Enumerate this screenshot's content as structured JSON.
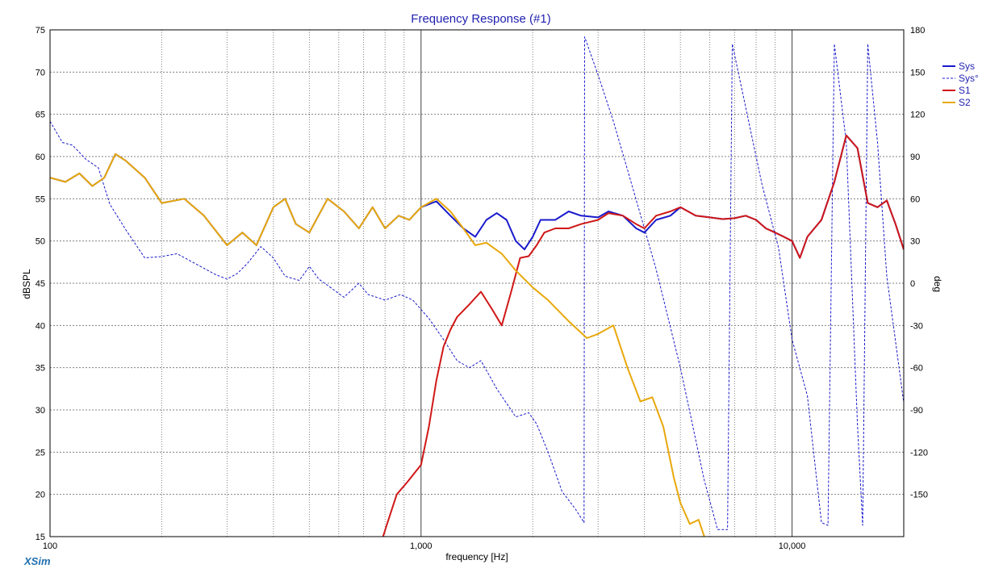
{
  "chart_data": {
    "type": "line",
    "title": "Frequency Response (#1)",
    "xlabel": "frequency [Hz]",
    "ylabel": "dBSPL",
    "y2label": "deg",
    "xscale": "log",
    "xlim": [
      100,
      20000
    ],
    "ylim": [
      15,
      75
    ],
    "y2lim": [
      -180,
      180
    ],
    "grid": true,
    "legend_position": "top-right",
    "x_tick_labels": [
      {
        "value": 100,
        "label": "100"
      },
      {
        "value": 1000,
        "label": "1,000"
      },
      {
        "value": 10000,
        "label": "10,000"
      }
    ],
    "y_ticks": [
      15,
      20,
      25,
      30,
      35,
      40,
      45,
      50,
      55,
      60,
      65,
      70,
      75
    ],
    "y2_ticks": [
      -150,
      -120,
      -90,
      -60,
      -30,
      0,
      30,
      60,
      90,
      120,
      150,
      180
    ],
    "series": [
      {
        "name": "Sys",
        "axis": "left",
        "color": "#1a1acc",
        "dash": "solid",
        "x": [
          100,
          110,
          120,
          130,
          140,
          150,
          160,
          180,
          200,
          230,
          260,
          300,
          330,
          360,
          400,
          430,
          460,
          500,
          560,
          620,
          680,
          740,
          800,
          870,
          930,
          1000,
          1100,
          1200,
          1300,
          1400,
          1500,
          1600,
          1700,
          1800,
          1900,
          2000,
          2100,
          2300,
          2500,
          2700,
          3000,
          3200,
          3500,
          3800,
          4000,
          4300,
          4700,
          5000,
          5500,
          6000,
          6500,
          7000,
          7500,
          8000,
          8500,
          9000,
          9500,
          10000,
          10500,
          11000,
          12000,
          13000,
          14000,
          15000,
          16000,
          17000,
          18000,
          19000,
          20000
        ],
        "values": [
          57.5,
          57.0,
          58.0,
          56.5,
          57.5,
          60.3,
          59.5,
          57.5,
          54.5,
          55.0,
          53.0,
          49.5,
          51.0,
          49.5,
          54.0,
          55.0,
          52.0,
          51.0,
          55.0,
          53.5,
          51.5,
          54.0,
          51.5,
          53.0,
          52.5,
          54.0,
          54.7,
          53.0,
          51.5,
          50.5,
          52.5,
          53.3,
          52.5,
          50.0,
          49.0,
          50.5,
          52.5,
          52.5,
          53.5,
          53.0,
          52.8,
          53.5,
          53.0,
          51.5,
          51.0,
          52.5,
          53.0,
          54.0,
          53.0,
          52.8,
          52.6,
          52.7,
          53.0,
          52.5,
          51.5,
          51.0,
          50.5,
          50.0,
          48.0,
          50.5,
          52.5,
          57.0,
          62.5,
          61.0,
          54.5,
          54.0,
          54.8,
          52.0,
          49.0
        ]
      },
      {
        "name": "Sys°",
        "axis": "right",
        "color": "#1a1acc",
        "dash": "dashed",
        "x": [
          100,
          108,
          115,
          125,
          135,
          145,
          160,
          180,
          200,
          220,
          250,
          280,
          300,
          320,
          340,
          370,
          400,
          430,
          470,
          500,
          530,
          570,
          620,
          680,
          720,
          800,
          880,
          950,
          1050,
          1150,
          1250,
          1350,
          1450,
          1600,
          1800,
          1950,
          2050,
          2200,
          2400,
          2600,
          2750,
          2760,
          3000,
          3300,
          3700,
          4300,
          5000,
          5800,
          6300,
          6700,
          6900,
          7500,
          8300,
          9200,
          10000,
          11000,
          12000,
          12500,
          13000,
          14000,
          15000,
          15500,
          16000,
          17000,
          18000,
          20000
        ],
        "values": [
          115,
          100,
          98,
          88,
          82,
          56,
          38,
          18,
          19,
          21,
          13,
          6,
          3,
          7,
          14,
          26,
          18,
          5,
          2,
          12,
          3,
          -3,
          -10,
          0,
          -8,
          -12,
          -8,
          -12,
          -25,
          -40,
          -55,
          -60,
          -55,
          -75,
          -95,
          -92,
          -100,
          -120,
          -148,
          -160,
          -170,
          175,
          148,
          115,
          70,
          10,
          -60,
          -140,
          -175,
          -175,
          170,
          125,
          70,
          25,
          -40,
          -80,
          -170,
          -172,
          170,
          100,
          -100,
          -172,
          170,
          100,
          5,
          -85
        ]
      },
      {
        "name": "S1",
        "axis": "left",
        "color": "#d01818",
        "dash": "solid",
        "x": [
          790,
          810,
          860,
          920,
          1000,
          1050,
          1100,
          1150,
          1200,
          1250,
          1350,
          1450,
          1550,
          1650,
          1750,
          1850,
          1950,
          2050,
          2150,
          2300,
          2500,
          2700,
          3000,
          3200,
          3500,
          3800,
          4000,
          4300,
          4700,
          5000,
          5500,
          6000,
          6500,
          7000,
          7500,
          8000,
          8500,
          9000,
          9500,
          10000,
          10500,
          11000,
          12000,
          13000,
          14000,
          15000,
          16000,
          17000,
          18000,
          19000,
          20000
        ],
        "values": [
          15.0,
          16.5,
          20.0,
          21.5,
          23.5,
          28.0,
          33.5,
          37.5,
          39.5,
          41.0,
          42.5,
          44.0,
          42.0,
          40.0,
          44.0,
          48.0,
          48.2,
          49.5,
          51.0,
          51.5,
          51.5,
          52.0,
          52.5,
          53.3,
          53.0,
          52.0,
          51.5,
          53.0,
          53.5,
          54.0,
          53.0,
          52.8,
          52.6,
          52.7,
          53.0,
          52.5,
          51.5,
          51.0,
          50.5,
          50.0,
          48.0,
          50.5,
          52.5,
          57.0,
          62.5,
          61.0,
          54.5,
          54.0,
          54.8,
          52.0,
          49.0
        ]
      },
      {
        "name": "S2",
        "axis": "left",
        "color": "#e8a80c",
        "dash": "solid",
        "x": [
          100,
          110,
          120,
          130,
          140,
          150,
          160,
          180,
          200,
          230,
          260,
          300,
          330,
          360,
          400,
          430,
          460,
          500,
          560,
          620,
          680,
          740,
          800,
          870,
          930,
          1000,
          1100,
          1200,
          1300,
          1400,
          1500,
          1650,
          1800,
          2000,
          2200,
          2500,
          2800,
          3000,
          3300,
          3600,
          3900,
          4200,
          4500,
          4800,
          5000,
          5300,
          5600,
          5800
        ],
        "values": [
          57.5,
          57.0,
          58.0,
          56.5,
          57.5,
          60.3,
          59.5,
          57.5,
          54.5,
          55.0,
          53.0,
          49.5,
          51.0,
          49.5,
          54.0,
          55.0,
          52.0,
          51.0,
          55.0,
          53.5,
          51.5,
          54.0,
          51.5,
          53.0,
          52.5,
          54.0,
          55.0,
          53.5,
          51.5,
          49.5,
          49.8,
          48.5,
          46.5,
          44.5,
          43.0,
          40.5,
          38.5,
          39.0,
          40.0,
          35.0,
          31.0,
          31.5,
          28.0,
          22.0,
          19.0,
          16.5,
          17.0,
          15.0
        ]
      }
    ]
  },
  "footer": {
    "brand": "XSim"
  },
  "colors": {
    "title": "#1f1fb0",
    "legend_text": "#1f1fb0",
    "brand": "#1f6fb0",
    "grid": "#808080",
    "background": "#ffffff"
  }
}
